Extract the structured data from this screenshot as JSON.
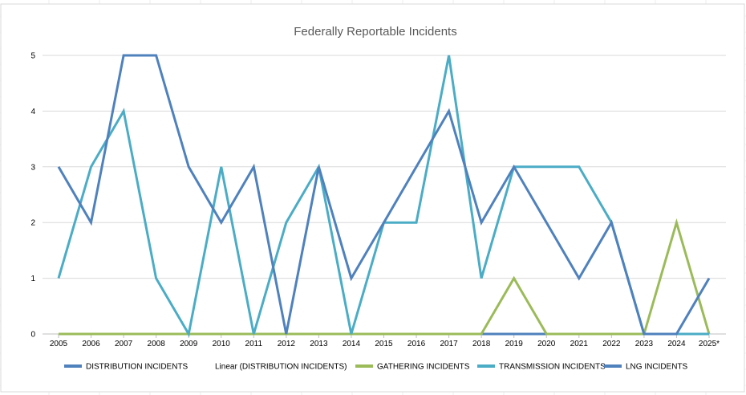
{
  "chart_data": {
    "type": "line",
    "title": "Federally Reportable Incidents",
    "categories": [
      "2005",
      "2006",
      "2007",
      "2008",
      "2009",
      "2010",
      "2011",
      "2012",
      "2013",
      "2014",
      "2015",
      "2016",
      "2017",
      "2018",
      "2019",
      "2020",
      "2021",
      "2022",
      "2023",
      "2024",
      "2025*"
    ],
    "ylim": [
      0,
      5
    ],
    "yticks": [
      0,
      1,
      2,
      3,
      4,
      5
    ],
    "grid": true,
    "legend_position": "bottom",
    "legend": [
      {
        "label": "DISTRIBUTION INCIDENTS",
        "color": "#4f81bd",
        "kind": "line"
      },
      {
        "label": "Linear (DISTRIBUTION INCIDENTS)",
        "color": "",
        "kind": "none"
      },
      {
        "label": "GATHERING INCIDENTS",
        "color": "#9bbb59",
        "kind": "line"
      },
      {
        "label": "TRANSMISSION INCIDENTS",
        "color": "#4bacc6",
        "kind": "line"
      },
      {
        "label": "LNG INCIDENTS",
        "color": "#4f81bd",
        "kind": "line"
      }
    ],
    "series": [
      {
        "name": "LNG INCIDENTS",
        "color": "#4f81bd",
        "values": [
          0,
          0,
          0,
          0,
          0,
          0,
          0,
          0,
          0,
          0,
          0,
          0,
          0,
          0,
          0,
          0,
          0,
          0,
          0,
          0,
          0
        ]
      },
      {
        "name": "GATHERING INCIDENTS",
        "color": "#9bbb59",
        "values": [
          0,
          0,
          0,
          0,
          0,
          0,
          0,
          0,
          0,
          0,
          0,
          0,
          0,
          0,
          1,
          0,
          0,
          0,
          0,
          2,
          0
        ]
      },
      {
        "name": "TRANSMISSION INCIDENTS",
        "color": "#4bacc6",
        "values": [
          1,
          3,
          4,
          1,
          0,
          3,
          0,
          2,
          3,
          0,
          2,
          2,
          5,
          1,
          3,
          3,
          3,
          2,
          0,
          0,
          0
        ]
      },
      {
        "name": "DISTRIBUTION INCIDENTS",
        "color": "#4f81bd",
        "values": [
          3,
          2,
          5,
          5,
          3,
          2,
          3,
          0,
          3,
          1,
          2,
          3,
          4,
          2,
          3,
          2,
          1,
          2,
          0,
          0,
          1
        ]
      }
    ]
  }
}
